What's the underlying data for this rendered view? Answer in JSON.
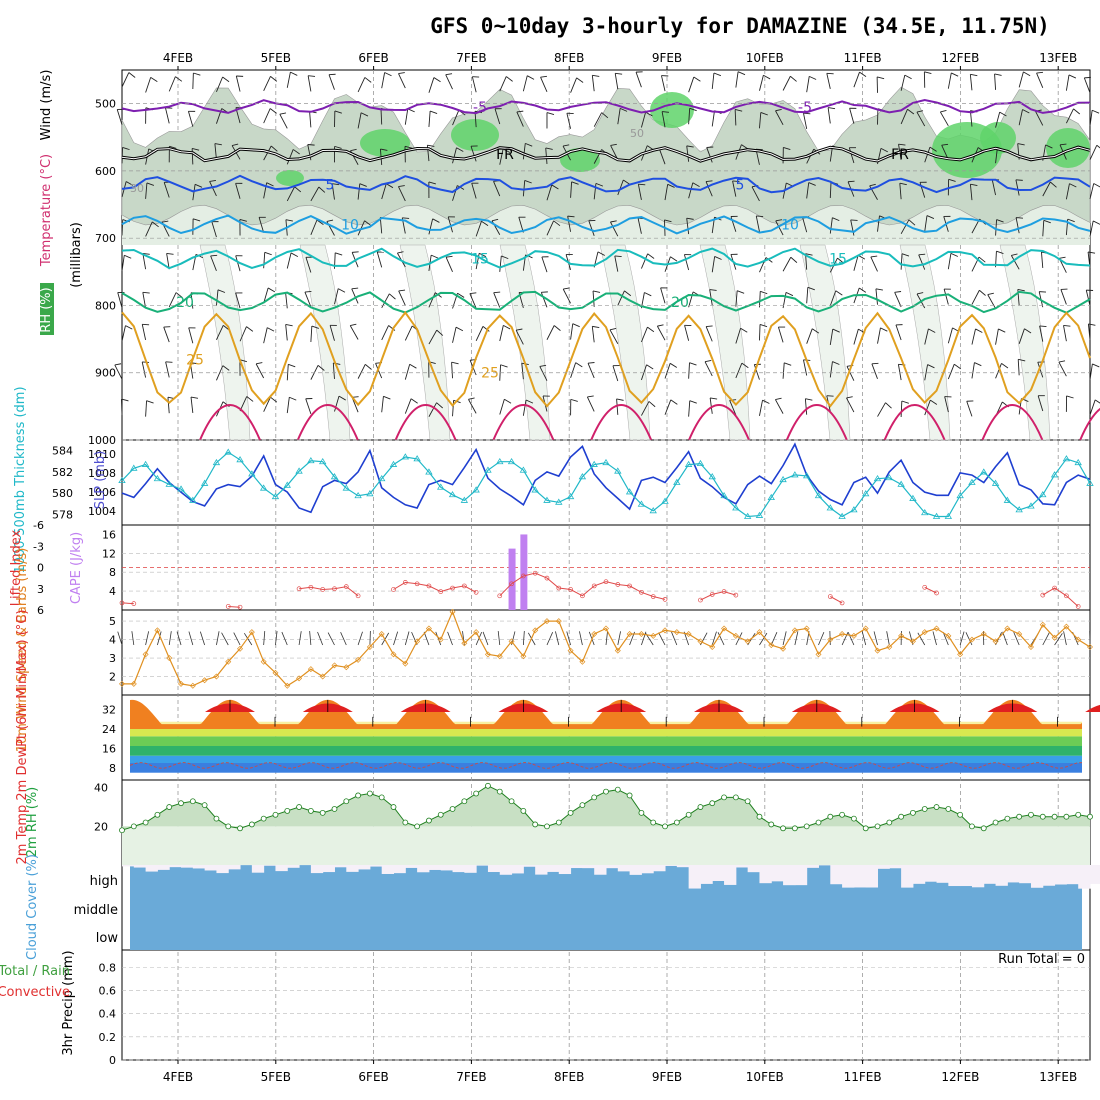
{
  "title": "GFS 0~10day 3-hourly for DAMAZINE (34.5E, 11.75N)",
  "dates": [
    "4FEB",
    "5FEB",
    "6FEB",
    "7FEB",
    "8FEB",
    "9FEB",
    "10FEB",
    "11FEB",
    "12FEB",
    "13FEB"
  ],
  "colors": {
    "purple": "#7d1fb0",
    "black": "#000000",
    "blue": "#1f4fe0",
    "lightblue": "#1e9ee0",
    "cyan": "#19bcbc",
    "teal": "#19b078",
    "orange": "#e0a020",
    "darkorange": "#e07818",
    "magenta": "#d0206a",
    "rh_green": "#5fd36a",
    "rh_grey": "#c8d8c8",
    "cloud": "#6aaad8"
  },
  "chart_data": [
    {
      "panel": "upper-air",
      "type": "contour",
      "ylabel_rh": "RH (%)",
      "ylabel_temp": "Temperature (°C)",
      "ylabel_wind": "Wind (m/s)",
      "ylabel_axis": "(millibars)",
      "ylim": [
        1000,
        450
      ],
      "yticks": [
        "500",
        "600",
        "700",
        "800",
        "900",
        "1000"
      ],
      "isotherms": [
        {
          "label": "-5",
          "level": 505
        },
        {
          "label": "FR",
          "level": 575
        },
        {
          "label": "5",
          "level": 620
        },
        {
          "label": "10",
          "level": 680
        },
        {
          "label": "15",
          "level": 730
        },
        {
          "label": "20",
          "level": 795
        },
        {
          "label": "25",
          "level": 880
        }
      ],
      "rh_labels": [
        "30",
        "50"
      ]
    },
    {
      "panel": "thickness-slp",
      "type": "line",
      "ylabel_left": "1000-500mb Thickness (dm)",
      "ylabel_right": "SLP (mb)",
      "thickness_ticks": [
        "584",
        "582",
        "580",
        "578"
      ],
      "slp_ticks": [
        "1010",
        "1008",
        "1006",
        "1004"
      ],
      "thickness_range": [
        577,
        585
      ],
      "thickness": [
        580.0,
        579.6,
        580.9,
        582.3,
        581.0,
        580.1,
        579.2,
        578.8,
        580.4,
        580.8,
        580.6,
        581.6,
        583.5,
        580.8,
        580.1,
        578.6,
        578.2,
        580.6,
        581.2,
        580.9,
        582.0,
        584.0,
        580.5,
        579.6,
        578.9,
        578.6,
        580.8,
        581.2,
        580.8,
        582.4,
        584.1,
        581.4,
        580.4,
        579.7,
        578.9,
        581.2,
        582.0,
        581.6,
        583.4,
        584.4,
        581.8,
        580.5,
        579.5,
        578.5,
        581.2,
        581.5,
        581.0,
        582.4,
        583.9,
        581.4,
        580.6,
        579.6,
        579.0,
        580.8,
        581.6,
        580.9,
        582.6,
        584.6,
        581.7,
        580.2,
        579.4,
        578.9,
        581.0,
        581.5,
        580.0,
        582.0,
        583.1,
        581.0,
        580.1,
        579.8,
        579.8,
        581.9,
        581.7,
        581.0,
        582.5,
        583.8,
        580.8,
        580.3,
        579.0,
        578.9,
        581.0,
        581.7,
        581.3
      ],
      "slp": [
        1007.2,
        1008.5,
        1008.9,
        1007.4,
        1006.8,
        1006.3,
        1005.1,
        1006.9,
        1009.1,
        1010.2,
        1009.4,
        1007.9,
        1006.4,
        1005.5,
        1006.7,
        1008.2,
        1009.3,
        1009.2,
        1007.6,
        1006.4,
        1005.6,
        1005.8,
        1007.4,
        1008.9,
        1009.7,
        1009.5,
        1008.1,
        1006.5,
        1005.7,
        1005.1,
        1006.2,
        1008.3,
        1009.2,
        1009.2,
        1008.3,
        1006.2,
        1005.1,
        1004.9,
        1005.5,
        1007.6,
        1008.9,
        1009.1,
        1008.2,
        1006.0,
        1004.7,
        1004.0,
        1005.0,
        1007.0,
        1008.9,
        1009.0,
        1007.6,
        1005.6,
        1004.3,
        1003.4,
        1003.5,
        1005.4,
        1007.3,
        1007.8,
        1007.7,
        1005.6,
        1004.3,
        1003.4,
        1004.1,
        1005.8,
        1007.4,
        1007.5,
        1006.8,
        1005.3,
        1003.8,
        1003.4,
        1003.4,
        1005.6,
        1007.0,
        1008.1,
        1006.9,
        1005.1,
        1004.1,
        1004.5,
        1005.7,
        1007.8,
        1009.5,
        1009.1,
        1006.9
      ]
    },
    {
      "panel": "cape-li",
      "type": "bar-line",
      "ylabel_left": "Lifted Index",
      "ylabel_right": "CAPE (J/kg)",
      "li_ticks": [
        "-6",
        "-3",
        "0",
        "3",
        "6"
      ],
      "cape_ticks": [
        "16",
        "12",
        "8",
        "4"
      ],
      "cape_range": [
        0,
        18
      ],
      "cape_bars": [
        {
          "index": 33,
          "value": 13
        },
        {
          "index": 34,
          "value": 16
        }
      ],
      "li_range": [
        -6,
        6
      ],
      "li": [
        5.0,
        5.1,
        null,
        null,
        null,
        null,
        null,
        null,
        null,
        5.5,
        5.6,
        null,
        null,
        null,
        null,
        3.0,
        2.8,
        3.1,
        3.0,
        2.7,
        4.0,
        null,
        null,
        3.1,
        2.1,
        2.3,
        2.6,
        3.4,
        2.9,
        2.6,
        3.5,
        null,
        4.0,
        2.3,
        1.2,
        0.8,
        1.5,
        2.9,
        3.1,
        4.0,
        2.6,
        2.0,
        2.4,
        2.6,
        3.5,
        4.1,
        4.5,
        null,
        null,
        4.6,
        3.8,
        3.4,
        3.9,
        null,
        null,
        null,
        null,
        null,
        null,
        null,
        4.1,
        5.0,
        null,
        null,
        null,
        null,
        null,
        null,
        2.8,
        3.6,
        null,
        null,
        null,
        null,
        null,
        null,
        null,
        null,
        3.9,
        2.9,
        4.0,
        5.5,
        null
      ],
      "li_zero_line": 0
    },
    {
      "panel": "wind10m",
      "type": "line",
      "ylabel": "10m Wind Speed & Barbs (m/s)",
      "yticks": [
        "5",
        "4",
        "3",
        "2"
      ],
      "ylim": [
        1,
        5.6
      ],
      "values": [
        1.6,
        1.6,
        3.2,
        4.5,
        3.0,
        1.6,
        1.5,
        1.8,
        2.0,
        2.8,
        3.5,
        4.4,
        2.8,
        2.2,
        1.5,
        1.9,
        2.4,
        2.0,
        2.6,
        2.5,
        2.9,
        3.6,
        4.3,
        3.2,
        2.7,
        3.9,
        4.6,
        4.0,
        5.5,
        3.8,
        4.4,
        3.2,
        3.1,
        3.9,
        3.1,
        4.5,
        5.0,
        5.0,
        3.4,
        2.8,
        4.3,
        4.6,
        3.4,
        4.3,
        4.3,
        4.2,
        4.5,
        4.4,
        4.3,
        3.9,
        3.6,
        4.6,
        4.2,
        3.9,
        4.4,
        3.7,
        3.5,
        4.5,
        4.6,
        3.2,
        4.0,
        4.3,
        4.2,
        4.6,
        3.4,
        3.6,
        4.2,
        3.9,
        4.4,
        4.6,
        4.2,
        3.2,
        4.0,
        4.3,
        3.9,
        4.6,
        4.3,
        3.6,
        4.8,
        4.1,
        4.7,
        4.0,
        3.6
      ]
    },
    {
      "panel": "temperature",
      "type": "area",
      "ylabel": "2m Temp 2m DewPt (6hr Min/Max) (°C)",
      "yticks": [
        "32",
        "24",
        "16",
        "8"
      ],
      "ylim": [
        3,
        38
      ],
      "temp_min": 26.0,
      "temp_max": 36.0,
      "dewpoint": 9.0
    },
    {
      "panel": "rh2m",
      "type": "area",
      "ylabel": "2m RH (%)",
      "yticks": [
        "40",
        "20"
      ],
      "ylim": [
        0,
        44
      ],
      "values": [
        18,
        20,
        22,
        26,
        30,
        32,
        33,
        31,
        24,
        20,
        19,
        21,
        24,
        26,
        28,
        30,
        28,
        27,
        29,
        33,
        36,
        37,
        35,
        30,
        22,
        20,
        23,
        26,
        29,
        33,
        37,
        41,
        38,
        33,
        28,
        21,
        20,
        22,
        27,
        31,
        35,
        38,
        39,
        36,
        27,
        22,
        20,
        22,
        26,
        30,
        32,
        35,
        35,
        33,
        25,
        21,
        19,
        19,
        20,
        22,
        25,
        26,
        24,
        19,
        20,
        22,
        25,
        27,
        29,
        30,
        29,
        26,
        20,
        19,
        22,
        24,
        25,
        26,
        25,
        25,
        25,
        26,
        25
      ]
    },
    {
      "panel": "cloud",
      "type": "area",
      "ylabel": "Cloud Cover (%)",
      "levels": [
        "high",
        "middle",
        "low"
      ]
    },
    {
      "panel": "precip",
      "type": "bar",
      "ylabel_left": "Total / Rain Convective",
      "ylabel_axis": "3hr Precip (mm)",
      "yticks": [
        "0.8",
        "0.6",
        "0.4",
        "0.2",
        "0"
      ],
      "ylim": [
        0,
        0.95
      ],
      "values": [],
      "run_total": "Run Total = 0"
    }
  ]
}
